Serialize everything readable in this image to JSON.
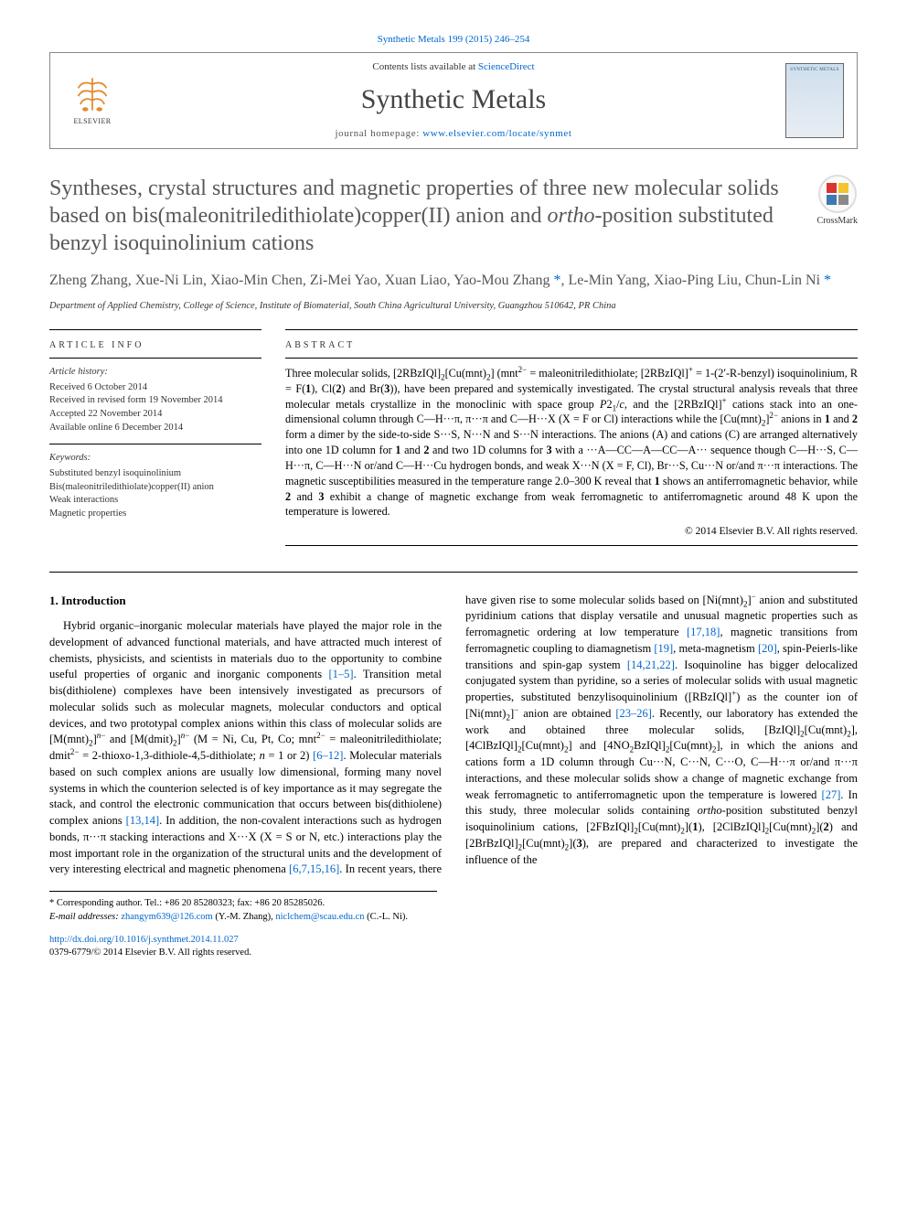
{
  "journal_ref": "Synthetic Metals 199 (2015) 246–254",
  "header": {
    "contents_prefix": "Contents lists available at ",
    "contents_link": "ScienceDirect",
    "journal_name": "Synthetic Metals",
    "homepage_prefix": "journal homepage: ",
    "homepage_link": "www.elsevier.com/locate/synmet",
    "elsevier_label": "ELSEVIER",
    "cover_label": "SYNTHETIC METALS"
  },
  "crossmark_label": "CrossMark",
  "title": "Syntheses, crystal structures and magnetic properties of three new molecular solids based on bis(maleonitriledithiolate)copper(II) anion and ortho-position substituted benzyl isoquinolinium cations",
  "authors_html": "Zheng Zhang, Xue-Ni Lin, Xiao-Min Chen, Zi-Mei Yao, Xuan Liao, Yao-Mou Zhang <span class='author-star'>*</span>, Le-Min Yang, Xiao-Ping Liu, Chun-Lin Ni <span class='author-star'>*</span>",
  "affiliation": "Department of Applied Chemistry, College of Science, Institute of Biomaterial, South China Agricultural University, Guangzhou 510642, PR China",
  "article_info": {
    "head": "ARTICLE INFO",
    "history_head": "Article history:",
    "received": "Received 6 October 2014",
    "revised": "Received in revised form 19 November 2014",
    "accepted": "Accepted 22 November 2014",
    "online": "Available online 6 December 2014",
    "keywords_head": "Keywords:",
    "kw1": "Substituted benzyl isoquinolinium",
    "kw2": "Bis(maleonitriledithiolate)copper(II) anion",
    "kw3": "Weak interactions",
    "kw4": "Magnetic properties"
  },
  "abstract": {
    "head": "ABSTRACT",
    "body_html": "Three molecular solids, [2RBzIQl]<sub>2</sub>[Cu(mnt)<sub>2</sub>] (mnt<sup>2−</sup> = maleonitriledithiolate; [2RBzIQl]<sup>+</sup> = 1-(2′-R-benzyl) isoquinolinium, R = F(<b>1</b>), Cl(<b>2</b>) and Br(<b>3</b>)), have been prepared and systemically investigated. The crystal structural analysis reveals that three molecular metals crystallize in the monoclinic with space group <i>P</i>2<sub>1</sub>/<i>c</i>, and the [2RBzIQl]<sup>+</sup> cations stack into an one-dimensional column through C—H···π, π···π and C—H···X (X = F or Cl) interactions while the [Cu(mnt)<sub>2</sub>]<sup>2−</sup> anions in <b>1</b> and <b>2</b> form a dimer by the side-to-side S···S, N···N and S···N interactions. The anions (A) and cations (C) are arranged alternatively into one 1D column for <b>1</b> and <b>2</b> and two 1D columns for <b>3</b> with a ···A—CC—A—CC—A··· sequence though C—H···S, C—H···π, C—H···N or/and C—H···Cu hydrogen bonds, and weak X···N (X = F, Cl), Br···S, Cu···N or/and π···π interactions. The magnetic susceptibilities measured in the temperature range 2.0–300 K reveal that <b>1</b> shows an antiferromagnetic behavior, while <b>2</b> and <b>3</b> exhibit a change of magnetic exchange from weak ferromagnetic to antiferromagnetic around 48 K upon the temperature is lowered.",
    "copyright": "© 2014 Elsevier B.V. All rights reserved."
  },
  "intro": {
    "heading": "1. Introduction",
    "body_html": "Hybrid organic–inorganic molecular materials have played the major role in the development of advanced functional materials, and have attracted much interest of chemists, physicists, and scientists in materials duo to the opportunity to combine useful properties of organic and inorganic components <a class='ref-link'>[1–5]</a>. Transition metal bis(dithiolene) complexes have been intensively investigated as precursors of molecular solids such as molecular magnets, molecular conductors and optical devices, and two prototypal complex anions within this class of molecular solids are [M(mnt)<sub>2</sub>]<sup><i>n</i>−</sup> and [M(dmit)<sub>2</sub>]<sup><i>n</i>−</sup> (M = Ni, Cu, Pt, Co; mnt<sup>2−</sup> = maleonitriledithiolate; dmit<sup>2−</sup> = 2-thioxo-1,3-dithiole-4,5-dithiolate; <i>n</i> = 1 or 2) <a class='ref-link'>[6–12]</a>. Molecular materials based on such complex anions are usually low dimensional, forming many novel systems in which the counterion selected is of key importance as it may segregate the stack, and control the electronic communication that occurs between bis(dithiolene) complex anions <a class='ref-link'>[13,14]</a>. In addition, the non-covalent interactions such as hydrogen bonds, π···π stacking interactions and X···X (X = S or N, etc.) interactions play the most important role in the organization of the structural units and the development of very interesting electrical and magnetic phenomena <a class='ref-link'>[6,7,15,16]</a>. In recent years, there have given rise to some molecular solids based on [Ni(mnt)<sub>2</sub>]<sup>−</sup> anion and substituted pyridinium cations that display versatile and unusual magnetic properties such as ferromagnetic ordering at low temperature <a class='ref-link'>[17,18]</a>, magnetic transitions from ferromagnetic coupling to diamagnetism <a class='ref-link'>[19]</a>, meta-magnetism <a class='ref-link'>[20]</a>, spin-Peierls-like transitions and spin-gap system <a class='ref-link'>[14,21,22]</a>. Isoquinoline has bigger delocalized conjugated system than pyridine, so a series of molecular solids with usual magnetic properties, substituted benzylisoquinolinium ([RBzIQl]<sup>+</sup>) as the counter ion of [Ni(mnt)<sub>2</sub>]<sup>−</sup> anion are obtained <a class='ref-link'>[23–26]</a>. Recently, our laboratory has extended the work and obtained three molecular solids, [BzIQl]<sub>2</sub>[Cu(mnt)<sub>2</sub>], [4ClBzIQl]<sub>2</sub>[Cu(mnt)<sub>2</sub>] and [4NO<sub>2</sub>BzIQl]<sub>2</sub>[Cu(mnt)<sub>2</sub>], in which the anions and cations form a 1D column through Cu···N, C···N, C···O, C—H···π or/and π···π interactions, and these molecular solids show a change of magnetic exchange from weak ferromagnetic to antiferromagnetic upon the temperature is lowered <a class='ref-link'>[27]</a>. In this study, three molecular solids containing <i>ortho</i>-position substituted benzyl isoquinolinium cations, [2FBzIQl]<sub>2</sub>[Cu(mnt)<sub>2</sub>](<b>1</b>), [2ClBzIQl]<sub>2</sub>[Cu(mnt)<sub>2</sub>](<b>2</b>) and [2BrBzIQl]<sub>2</sub>[Cu(mnt)<sub>2</sub>](<b>3</b>), are prepared and characterized to investigate the influence of the"
  },
  "footnotes": {
    "corr": "* Corresponding author. Tel.: +86 20 85280323; fax: +86 20 85285026.",
    "email_label": "E-mail addresses: ",
    "email1": "zhangym639@126.com",
    "email1_who": " (Y.-M. Zhang), ",
    "email2": "niclchem@scau.edu.cn",
    "email2_who": " (C.-L. Ni)."
  },
  "doi": {
    "link": "http://dx.doi.org/10.1016/j.synthmet.2014.11.027",
    "issn_line": "0379-6779/© 2014 Elsevier B.V. All rights reserved."
  },
  "colors": {
    "link": "#0066cc",
    "text": "#000000",
    "title_gray": "#585858",
    "rule": "#000000"
  }
}
